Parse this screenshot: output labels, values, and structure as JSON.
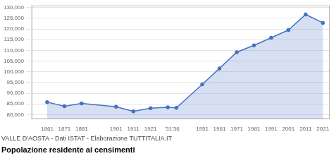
{
  "chart_data": {
    "type": "area",
    "title": "Popolazione residente ai censimenti",
    "subtitle": "VALLE D'AOSTA - Dati ISTAT - Elaborazione TUTTITALIA.IT",
    "x": [
      1861,
      1871,
      1881,
      1901,
      1911,
      1921,
      1931,
      1936,
      1951,
      1961,
      1971,
      1981,
      1991,
      2001,
      2011,
      2021
    ],
    "values": [
      85840,
      83907,
      85246,
      83670,
      81529,
      83014,
      83395,
      83159,
      94140,
      101596,
      109150,
      112353,
      115938,
      119548,
      126806,
      122868
    ],
    "color": "#4472C4",
    "marker": "circle",
    "xlim": [
      1852,
      2025
    ],
    "xticks": [
      1861,
      1871,
      1881,
      1901,
      1911,
      1921,
      {
        "value": 1933.5,
        "label": "'31'36"
      },
      1951,
      1961,
      1971,
      1981,
      1991,
      2001,
      2011,
      2021
    ],
    "ylim": [
      78000,
      131000
    ],
    "yticks": [
      {
        "value": 80000,
        "label": "80,000"
      },
      {
        "value": 85000,
        "label": "85,000"
      },
      {
        "value": 90000,
        "label": "90,000"
      },
      {
        "value": 95000,
        "label": "95,000"
      },
      {
        "value": 100000,
        "label": "100,000"
      },
      {
        "value": 105000,
        "label": "105,000"
      },
      {
        "value": 110000,
        "label": "110,000"
      },
      {
        "value": 115000,
        "label": "115,000"
      },
      {
        "value": 120000,
        "label": "120,000"
      },
      {
        "value": 125000,
        "label": "125,000"
      },
      {
        "value": 130000,
        "label": "130,000"
      }
    ],
    "grid": "y"
  }
}
